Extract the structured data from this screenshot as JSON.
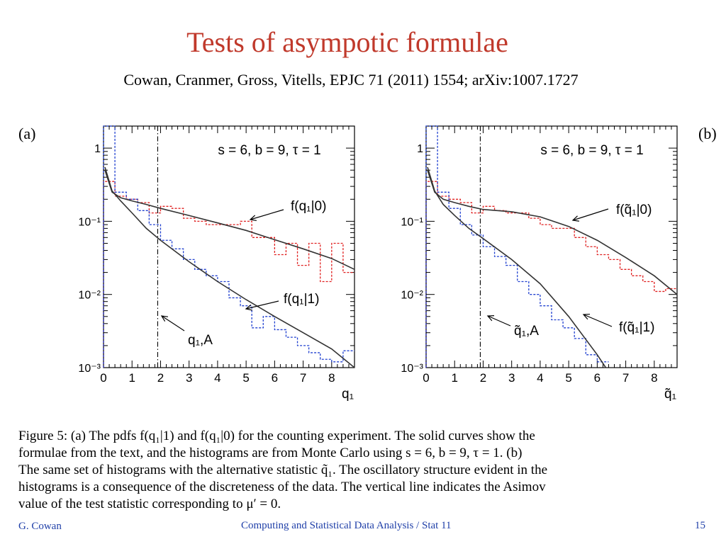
{
  "slide": {
    "title": "Tests of asympotic formulae",
    "subtitle": "Cowan, Cranmer, Gross, Vitells, EPJC 71 (2011) 1554; arXiv:1007.1727"
  },
  "caption": {
    "line1": "Figure 5:  (a) The pdfs f(q₁|1) and f(q₁|0) for the counting experiment.  The solid curves show the",
    "line2": "formulae from the text, and the histograms are from Monte Carlo using s = 6, b = 9, τ = 1.  (b)",
    "line3": "The same set of histograms with the alternative statistic q̃₁.  The oscillatory structure evident in the",
    "line4": "histograms is a consequence of the discreteness of the data.  The vertical line indicates the Asimov",
    "line5": "value of the test statistic corresponding to μ′ = 0."
  },
  "footer": {
    "author": "G. Cowan",
    "course": "Computing and Statistical Data Analysis / Stat 11",
    "page": "15"
  },
  "colors": {
    "title": "#c0392b",
    "footer": "#1f3fa8",
    "h0_hist": "#e02020",
    "h1_hist": "#2040d0",
    "curve": "#333333"
  },
  "chart_data": [
    {
      "type": "line",
      "panel_label": "(a)",
      "log_y": true,
      "xlim": [
        0,
        8.8
      ],
      "ylim": [
        0.001,
        2
      ],
      "x_ticks": [
        "0",
        "1",
        "2",
        "3",
        "4",
        "5",
        "6",
        "7",
        "8"
      ],
      "y_ticks": [
        "1",
        "10⁻¹",
        "10⁻²",
        "10⁻³"
      ],
      "xlabel": "q₁",
      "params_text": "s = 6, b = 9, τ = 1",
      "asimov_x": 1.9,
      "asimov_label": "q₁,A",
      "series": [
        {
          "name": "f(q₁|0)",
          "kind": "histogram",
          "color": "#e02020",
          "edges": [
            0,
            0.4,
            0.8,
            1.2,
            1.6,
            2.0,
            2.4,
            2.8,
            3.2,
            3.6,
            4.0,
            4.4,
            4.8,
            5.2,
            5.6,
            6.0,
            6.4,
            6.8,
            7.2,
            7.6,
            8.0,
            8.4,
            8.8
          ],
          "values": [
            0.35,
            0.22,
            0.2,
            0.18,
            0.13,
            0.16,
            0.15,
            0.11,
            0.1,
            0.09,
            0.09,
            0.09,
            0.1,
            0.06,
            0.06,
            0.035,
            0.05,
            0.025,
            0.05,
            0.015,
            0.05,
            0.02
          ]
        },
        {
          "name": "f(q₁|1)",
          "kind": "histogram",
          "color": "#2040d0",
          "edges": [
            0,
            0.4,
            0.8,
            1.2,
            1.6,
            2.0,
            2.4,
            2.8,
            3.2,
            3.6,
            4.0,
            4.4,
            4.8,
            5.2,
            5.6,
            6.0,
            6.4,
            6.8,
            7.2,
            7.6,
            8.0,
            8.4,
            8.8
          ],
          "values": [
            2.0,
            0.25,
            0.2,
            0.14,
            0.09,
            0.055,
            0.042,
            0.03,
            0.022,
            0.018,
            0.015,
            0.009,
            0.007,
            0.0035,
            0.005,
            0.0033,
            0.0026,
            0.002,
            0.0016,
            0.0013,
            0.0012,
            0.0017
          ]
        },
        {
          "name": "f(q₁|0) formula",
          "kind": "curve",
          "x": [
            0.05,
            0.3,
            0.6,
            1,
            1.5,
            2,
            3,
            4,
            5,
            6,
            7,
            8,
            8.8
          ],
          "y": [
            0.5,
            0.25,
            0.21,
            0.19,
            0.17,
            0.15,
            0.12,
            0.095,
            0.075,
            0.056,
            0.042,
            0.031,
            0.022
          ]
        },
        {
          "name": "f(q₁|1) formula",
          "kind": "curve",
          "x": [
            0.05,
            0.3,
            0.6,
            1,
            1.5,
            2,
            3,
            4,
            5,
            6,
            7,
            8,
            8.8
          ],
          "y": [
            0.55,
            0.26,
            0.19,
            0.13,
            0.08,
            0.055,
            0.028,
            0.015,
            0.0085,
            0.005,
            0.003,
            0.0018,
            0.0009
          ]
        }
      ],
      "labels": [
        "f(q₁|0)",
        "f(q₁|1)"
      ]
    },
    {
      "type": "line",
      "panel_label": "(b)",
      "log_y": true,
      "xlim": [
        0,
        8.8
      ],
      "ylim": [
        0.001,
        2
      ],
      "x_ticks": [
        "0",
        "1",
        "2",
        "3",
        "4",
        "5",
        "6",
        "7",
        "8"
      ],
      "y_ticks": [
        "1",
        "10⁻¹",
        "10⁻²",
        "10⁻³"
      ],
      "xlabel": "q̃₁",
      "params_text": "s = 6, b = 9, τ = 1",
      "asimov_x": 1.9,
      "asimov_label": "q̃₁,A",
      "series": [
        {
          "name": "f(q̃₁|0)",
          "kind": "histogram",
          "color": "#e02020",
          "edges": [
            0,
            0.4,
            0.8,
            1.2,
            1.6,
            2.0,
            2.4,
            2.8,
            3.2,
            3.6,
            4.0,
            4.4,
            4.8,
            5.2,
            5.6,
            6.0,
            6.4,
            6.8,
            7.2,
            7.6,
            8.0,
            8.4,
            8.8
          ],
          "values": [
            0.35,
            0.22,
            0.2,
            0.18,
            0.13,
            0.16,
            0.14,
            0.13,
            0.13,
            0.11,
            0.09,
            0.08,
            0.08,
            0.06,
            0.045,
            0.035,
            0.03,
            0.022,
            0.018,
            0.015,
            0.011,
            0.012
          ]
        },
        {
          "name": "f(q̃₁|1)",
          "kind": "histogram",
          "color": "#2040d0",
          "edges": [
            0,
            0.4,
            0.8,
            1.2,
            1.6,
            2.0,
            2.4,
            2.8,
            3.2,
            3.6,
            4.0,
            4.4,
            4.8,
            5.2,
            5.6,
            6.0,
            6.4
          ],
          "values": [
            2.0,
            0.25,
            0.15,
            0.09,
            0.065,
            0.045,
            0.033,
            0.025,
            0.015,
            0.01,
            0.007,
            0.0045,
            0.0035,
            0.0025,
            0.0015,
            0.0012
          ]
        },
        {
          "name": "f(q̃₁|0) formula",
          "kind": "curve",
          "x": [
            0.05,
            0.3,
            0.6,
            1,
            1.5,
            2,
            2.5,
            3,
            4,
            5,
            6,
            7,
            8,
            8.8
          ],
          "y": [
            0.5,
            0.25,
            0.2,
            0.18,
            0.16,
            0.145,
            0.14,
            0.135,
            0.115,
            0.085,
            0.055,
            0.032,
            0.018,
            0.01
          ]
        },
        {
          "name": "f(q̃₁|1) formula",
          "kind": "curve",
          "x": [
            0.05,
            0.3,
            0.6,
            1,
            1.5,
            2,
            3,
            4,
            5,
            6,
            6.3
          ],
          "y": [
            0.55,
            0.26,
            0.17,
            0.12,
            0.08,
            0.058,
            0.03,
            0.014,
            0.005,
            0.0015,
            0.001
          ]
        }
      ],
      "labels": [
        "f(q̃₁|0)",
        "f(q̃₁|1)"
      ]
    }
  ]
}
